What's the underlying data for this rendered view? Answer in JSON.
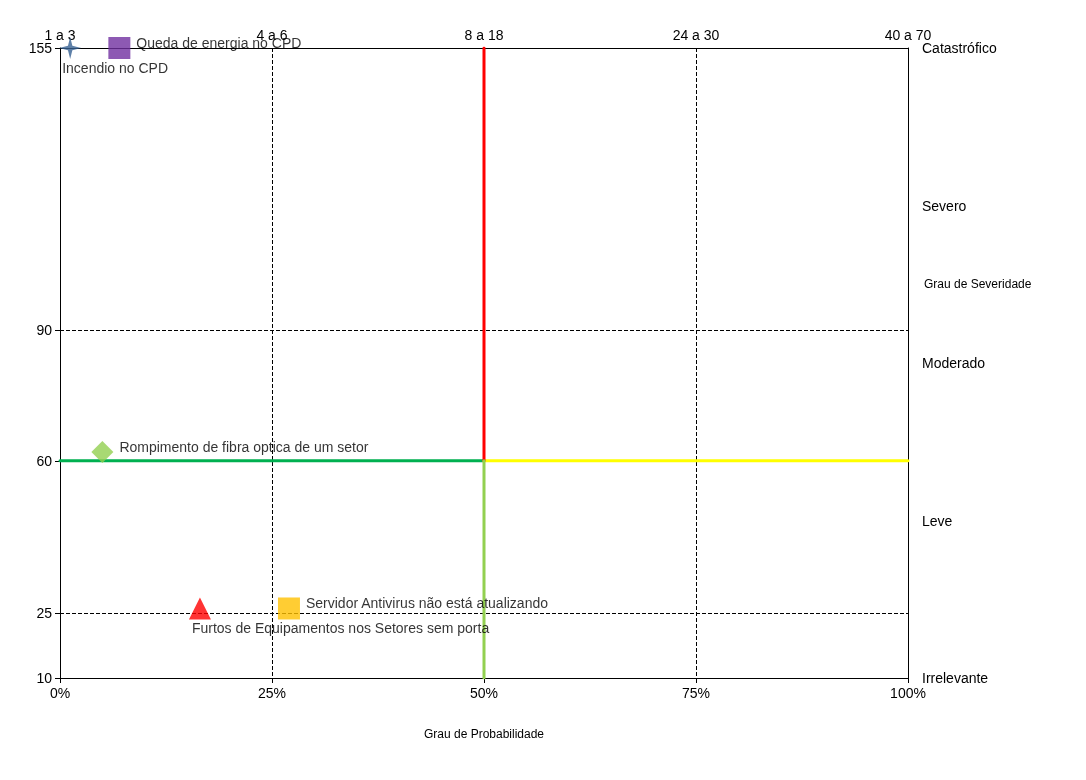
{
  "chart_data": {
    "type": "scatter",
    "xlabel": "Grau de Probabilidade",
    "y2label": "Grau de Severidade",
    "xlim": [
      0,
      100
    ],
    "xticks": [
      {
        "value": 0,
        "label": "0%"
      },
      {
        "value": 25,
        "label": "25%"
      },
      {
        "value": 50,
        "label": "50%"
      },
      {
        "value": 75,
        "label": "75%"
      },
      {
        "value": 100,
        "label": "100%"
      }
    ],
    "annotations": [
      "1 a 3",
      "4 a 6",
      "8 a 18",
      "24 a 30",
      "40 a 70"
    ],
    "y2_categories": [
      "Catastrófico",
      "Severo",
      "Moderado",
      "Leve",
      "Irrelevante"
    ],
    "ylim": [
      10,
      155
    ],
    "yticks": [
      10,
      25,
      60,
      90,
      155
    ],
    "grid": true,
    "legend": false,
    "series": [
      {
        "type": "line",
        "color": "#00b050",
        "x": [
          0,
          50
        ],
        "values": [
          60,
          60
        ],
        "marker": "none"
      },
      {
        "type": "line",
        "color": "#ffff00",
        "x": [
          50,
          100
        ],
        "values": [
          60,
          60
        ],
        "marker": "none"
      },
      {
        "type": "line",
        "color": "#ff0000",
        "x": [
          50,
          50
        ],
        "values": [
          60,
          155
        ],
        "marker": "none"
      },
      {
        "type": "line",
        "color": "#92d050",
        "x": [
          50,
          50
        ],
        "values": [
          10,
          60
        ],
        "marker": "none"
      },
      {
        "name": "Incendio no CPD",
        "color": "#366092",
        "marker": "star",
        "x": [
          1.2
        ],
        "values": [
          155
        ]
      },
      {
        "name": "Queda de energia no CPD",
        "color": "#7030a0",
        "marker": "square",
        "x": [
          7
        ],
        "values": [
          155
        ]
      },
      {
        "name": "Rompimento de fibra optica de um setor",
        "color": "#92d050",
        "marker": "diamond",
        "x": [
          5
        ],
        "values": [
          62
        ]
      },
      {
        "name": "Furtos de Equipamentos nos Setores sem porta",
        "color": "#ff0000",
        "marker": "triangle",
        "x": [
          16.5
        ],
        "values": [
          26
        ]
      },
      {
        "name": "Servidor Antivirus não está atualizando",
        "color": "#ffc000",
        "marker": "square",
        "x": [
          27
        ],
        "values": [
          26
        ]
      }
    ]
  }
}
